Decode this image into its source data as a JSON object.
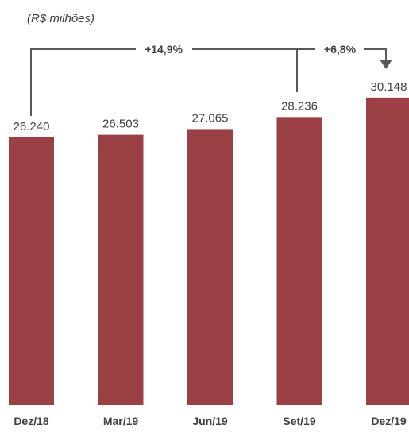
{
  "chart_data": {
    "type": "bar",
    "unit_label": "(R$ milhões)",
    "categories": [
      "Dez/18",
      "Mar/19",
      "Jun/19",
      "Set/19",
      "Dez/19"
    ],
    "values": [
      26240,
      26503,
      27065,
      28236,
      30148
    ],
    "value_labels": [
      "26.240",
      "26.503",
      "27.065",
      "28.236",
      "30.148"
    ],
    "bar_color": "#9b4045",
    "annotations": [
      {
        "text": "+14,9%",
        "from": "Dez/18",
        "to": "Dez/19"
      },
      {
        "text": "+6,8%",
        "from": "Set/19",
        "to": "Dez/19"
      }
    ]
  }
}
